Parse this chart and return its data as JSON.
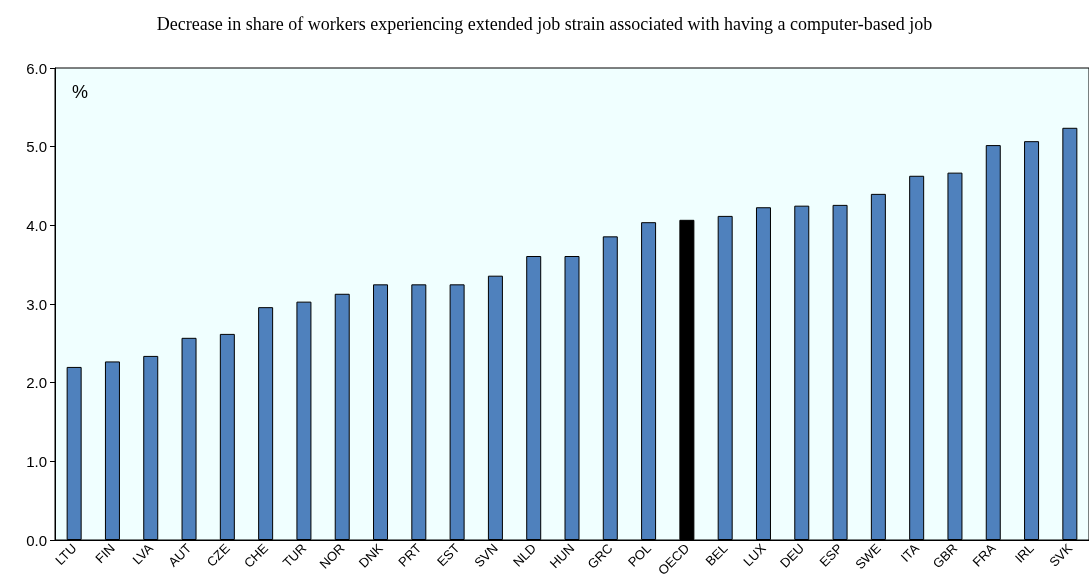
{
  "chart_data": {
    "type": "bar",
    "title": "Decrease in share of workers experiencing extended job strain associated with having a computer-based job",
    "categories": [
      "LTU",
      "FIN",
      "LVA",
      "AUT",
      "CZE",
      "CHE",
      "TUR",
      "NOR",
      "DNK",
      "PRT",
      "EST",
      "SVN",
      "NLD",
      "HUN",
      "GRC",
      "POL",
      "OECD",
      "BEL",
      "LUX",
      "DEU",
      "ESP",
      "SWE",
      "ITA",
      "GBR",
      "FRA",
      "IRL",
      "SVK"
    ],
    "values": [
      2.2,
      2.27,
      2.34,
      2.57,
      2.62,
      2.96,
      3.03,
      3.13,
      3.25,
      3.25,
      3.25,
      3.36,
      3.61,
      3.61,
      3.86,
      4.04,
      4.07,
      4.12,
      4.23,
      4.25,
      4.26,
      4.4,
      4.63,
      4.67,
      5.02,
      5.07,
      5.24
    ],
    "colors": [
      "#4f81bd",
      "#4f81bd",
      "#4f81bd",
      "#4f81bd",
      "#4f81bd",
      "#4f81bd",
      "#4f81bd",
      "#4f81bd",
      "#4f81bd",
      "#4f81bd",
      "#4f81bd",
      "#4f81bd",
      "#4f81bd",
      "#4f81bd",
      "#4f81bd",
      "#4f81bd",
      "#000000",
      "#4f81bd",
      "#4f81bd",
      "#4f81bd",
      "#4f81bd",
      "#4f81bd",
      "#4f81bd",
      "#4f81bd",
      "#4f81bd",
      "#4f81bd",
      "#4f81bd"
    ],
    "ylim": [
      0,
      6
    ],
    "yticks": [
      {
        "value": 0,
        "label": "0.0"
      },
      {
        "value": 1,
        "label": "1.0"
      },
      {
        "value": 2,
        "label": "2.0"
      },
      {
        "value": 3,
        "label": "3.0"
      },
      {
        "value": 4,
        "label": "4.0"
      },
      {
        "value": 5,
        "label": "5.0"
      },
      {
        "value": 6,
        "label": "6.0"
      }
    ],
    "annotations": [
      "%"
    ],
    "grid": false
  }
}
